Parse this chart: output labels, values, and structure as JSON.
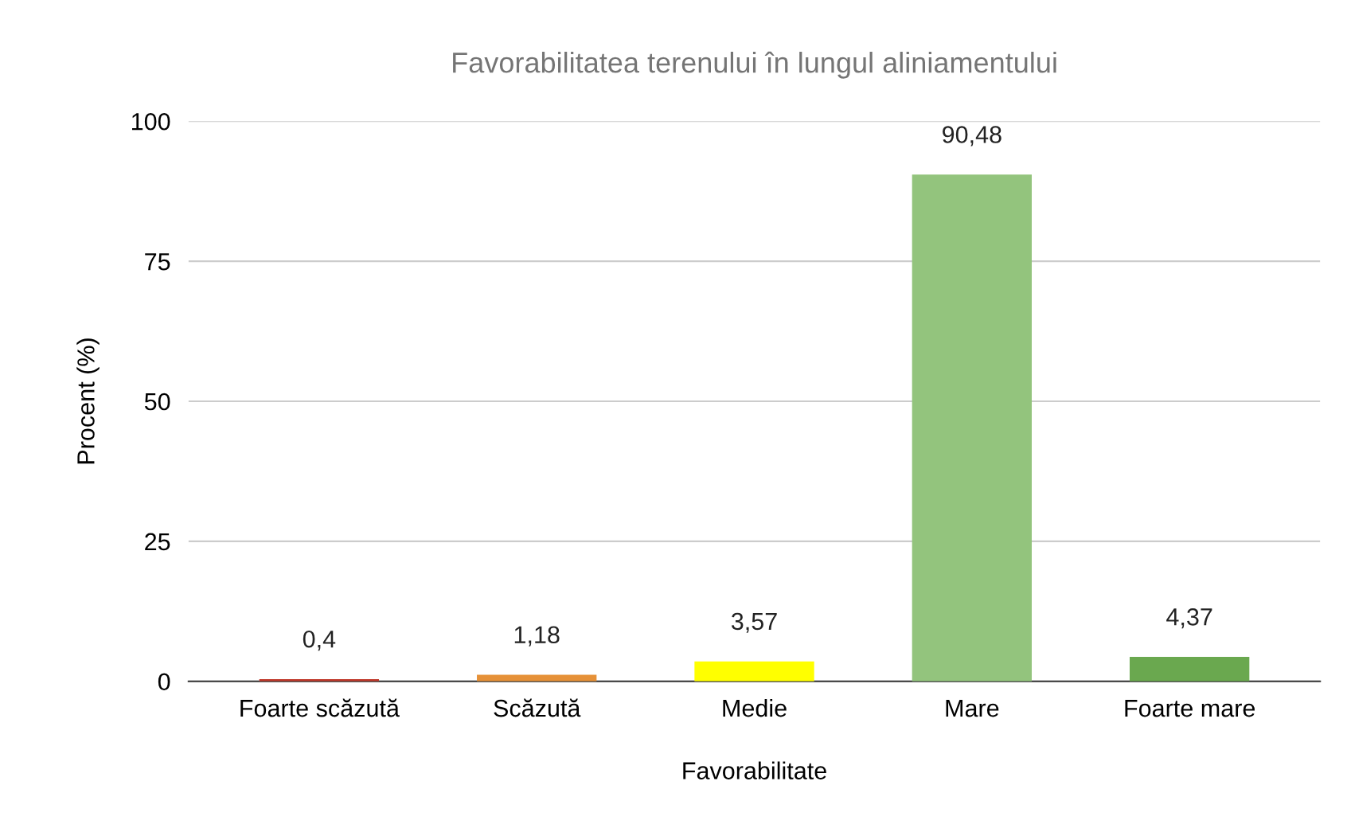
{
  "chart_data": {
    "type": "bar",
    "title": "Favorabilitatea terenului în lungul aliniamentului",
    "xlabel": "Favorabilitate",
    "ylabel": "Procent (%)",
    "categories": [
      "Foarte scăzută",
      "Scăzută",
      "Medie",
      "Mare",
      "Foarte mare"
    ],
    "values": [
      0.4,
      1.18,
      3.57,
      90.48,
      4.37
    ],
    "colors": [
      "#c0392b",
      "#e69138",
      "#ffff00",
      "#93c47d",
      "#6aa84f"
    ],
    "value_labels": [
      "0,4",
      "1,18",
      "3,57",
      "90,48",
      "4,37"
    ],
    "ylim": [
      0,
      100
    ],
    "yticks": [
      0,
      25,
      50,
      75,
      100
    ],
    "grid": "y"
  }
}
